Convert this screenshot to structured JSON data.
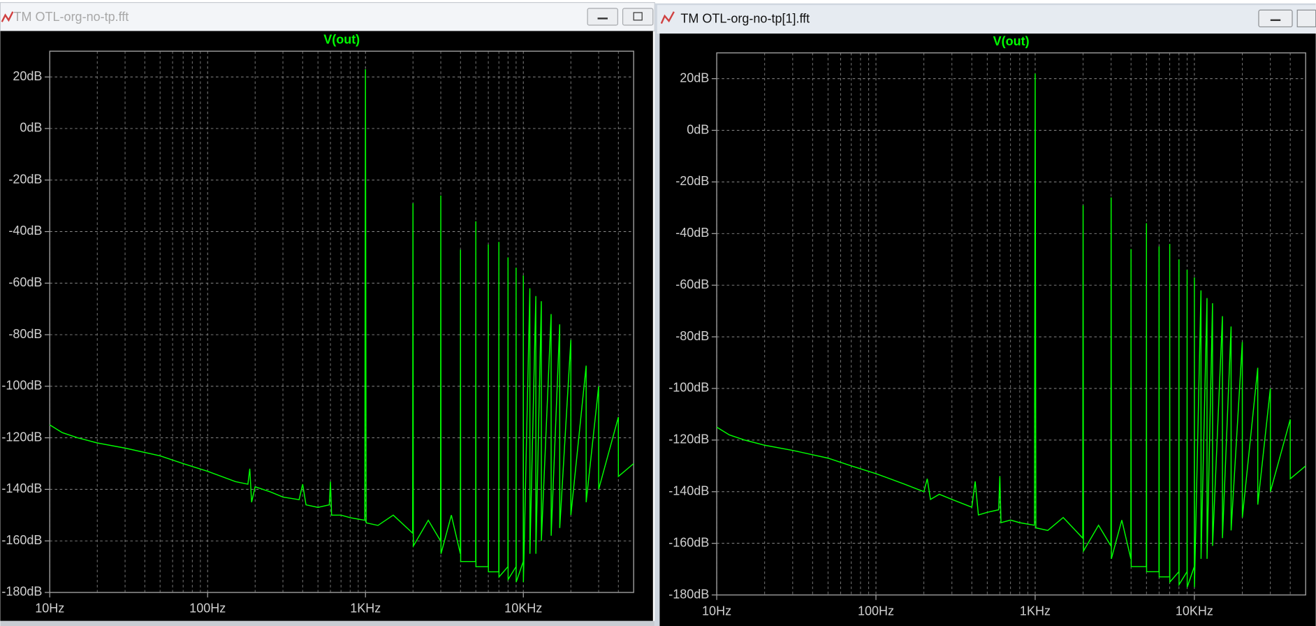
{
  "windows": [
    {
      "title": "TM OTL-org-no-tp.fft"
    },
    {
      "title": "TM OTL-org-no-tp[1].fft"
    }
  ],
  "chart_data": [
    {
      "type": "line",
      "title": "V(out)",
      "color": "#00ff00",
      "x_log_scale": true,
      "grid": true,
      "x": [
        10,
        12,
        15,
        20,
        30,
        50,
        70,
        100,
        150,
        180,
        185,
        190,
        200,
        250,
        300,
        380,
        400,
        420,
        500,
        590,
        600,
        610,
        700,
        800,
        990,
        1000,
        1010,
        1200,
        1500,
        1990,
        2000,
        2010,
        2500,
        2990,
        3000,
        3010,
        3500,
        3990,
        4000,
        4010,
        4990,
        5000,
        5010,
        5990,
        6000,
        6010,
        6990,
        7000,
        7010,
        7990,
        8000,
        8010,
        8990,
        9000,
        9010,
        9990,
        10000,
        10010,
        11000,
        11010,
        12000,
        12010,
        13000,
        13010,
        15000,
        15010,
        17000,
        17010,
        20000,
        20010,
        25000,
        25010,
        30000,
        30010,
        40000,
        40010,
        50000
      ],
      "values": [
        -115,
        -118,
        -120,
        -122,
        -124,
        -127,
        -130,
        -133,
        -137,
        -138,
        -132,
        -145,
        -139,
        -141,
        -143,
        -144,
        -138,
        -146,
        -147,
        -146,
        -137,
        -150,
        -150,
        -151,
        -152,
        23,
        -153,
        -154,
        -150,
        -157,
        -29,
        -162,
        -152,
        -160,
        -26,
        -165,
        -150,
        -165,
        -47,
        -168,
        -168,
        -36,
        -170,
        -170,
        -45,
        -172,
        -172,
        -44,
        -174,
        -170,
        -50,
        -175,
        -170,
        -54,
        -176,
        -168,
        -57,
        -176,
        -62,
        -165,
        -65,
        -165,
        -67,
        -160,
        -72,
        -158,
        -76,
        -155,
        -82,
        -150,
        -92,
        -145,
        -100,
        -140,
        -112,
        -135,
        -130
      ],
      "xlim": [
        10,
        50000
      ],
      "xticks": [
        {
          "value": 10,
          "label": "10Hz"
        },
        {
          "value": 100,
          "label": "100Hz"
        },
        {
          "value": 1000,
          "label": "1KHz"
        },
        {
          "value": 10000,
          "label": "10KHz"
        }
      ],
      "ylim": [
        -180,
        30
      ],
      "yticks": [
        {
          "value": -180,
          "label": "-180dB"
        },
        {
          "value": -160,
          "label": "-160dB"
        },
        {
          "value": -140,
          "label": "-140dB"
        },
        {
          "value": -120,
          "label": "-120dB"
        },
        {
          "value": -100,
          "label": "-100dB"
        },
        {
          "value": -80,
          "label": "-80dB"
        },
        {
          "value": -60,
          "label": "-60dB"
        },
        {
          "value": -40,
          "label": "-40dB"
        },
        {
          "value": -20,
          "label": "-20dB"
        },
        {
          "value": 0,
          "label": "0dB"
        },
        {
          "value": 20,
          "label": "20dB"
        }
      ]
    },
    {
      "type": "line",
      "title": "V(out)",
      "color": "#00ff00",
      "x_log_scale": true,
      "grid": true,
      "x": [
        10,
        12,
        15,
        20,
        30,
        50,
        70,
        100,
        150,
        200,
        210,
        220,
        250,
        300,
        400,
        420,
        440,
        500,
        590,
        600,
        610,
        700,
        800,
        990,
        1000,
        1010,
        1200,
        1500,
        1990,
        2000,
        2010,
        2500,
        2990,
        3000,
        3010,
        3500,
        3990,
        4000,
        4010,
        4990,
        5000,
        5010,
        5990,
        6000,
        6010,
        6990,
        7000,
        7010,
        7990,
        8000,
        8010,
        8990,
        9000,
        9010,
        9990,
        10000,
        10010,
        11000,
        11010,
        12000,
        12010,
        13000,
        13010,
        15000,
        15010,
        17000,
        17010,
        20000,
        20010,
        25000,
        25010,
        30000,
        30010,
        40000,
        40010,
        50000
      ],
      "values": [
        -115,
        -118,
        -120,
        -122,
        -124,
        -127,
        -130,
        -133,
        -137,
        -140,
        -135,
        -143,
        -141,
        -143,
        -146,
        -136,
        -149,
        -148,
        -147,
        -134,
        -152,
        -151,
        -152,
        -153,
        22,
        -154,
        -155,
        -150,
        -158,
        -29,
        -163,
        -153,
        -161,
        -26,
        -166,
        -151,
        -166,
        -46,
        -169,
        -169,
        -36,
        -171,
        -171,
        -45,
        -173,
        -173,
        -44,
        -175,
        -171,
        -50,
        -176,
        -171,
        -54,
        -177,
        -169,
        -57,
        -177,
        -62,
        -166,
        -65,
        -166,
        -67,
        -161,
        -72,
        -158,
        -76,
        -155,
        -82,
        -150,
        -92,
        -145,
        -100,
        -140,
        -112,
        -135,
        -130
      ],
      "xlim": [
        10,
        50000
      ],
      "xticks": [
        {
          "value": 10,
          "label": "10Hz"
        },
        {
          "value": 100,
          "label": "100Hz"
        },
        {
          "value": 1000,
          "label": "1KHz"
        },
        {
          "value": 10000,
          "label": "10KHz"
        }
      ],
      "ylim": [
        -180,
        30
      ],
      "yticks": [
        {
          "value": -180,
          "label": "-180dB"
        },
        {
          "value": -160,
          "label": "-160dB"
        },
        {
          "value": -140,
          "label": "-140dB"
        },
        {
          "value": -120,
          "label": "-120dB"
        },
        {
          "value": -100,
          "label": "-100dB"
        },
        {
          "value": -80,
          "label": "-80dB"
        },
        {
          "value": -60,
          "label": "-60dB"
        },
        {
          "value": -40,
          "label": "-40dB"
        },
        {
          "value": -20,
          "label": "-20dB"
        },
        {
          "value": 0,
          "label": "0dB"
        },
        {
          "value": 20,
          "label": "20dB"
        }
      ]
    }
  ]
}
